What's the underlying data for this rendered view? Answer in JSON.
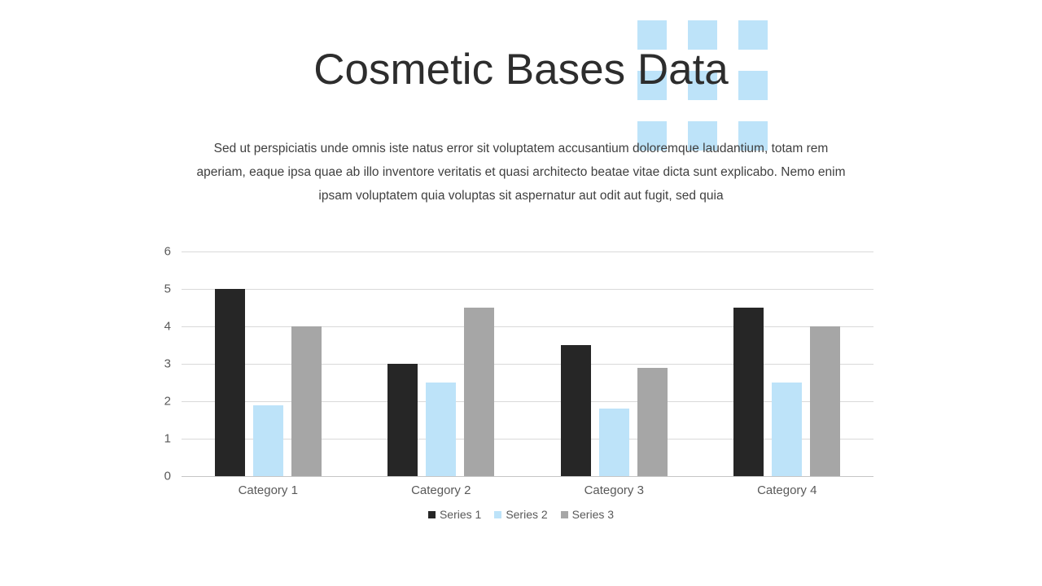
{
  "slide": {
    "title": "Cosmetic Bases Data",
    "body_lines": [
      "Sed ut perspiciatis unde omnis iste natus error sit voluptatem accusantium doloremque laudantium, totam rem",
      "aperiam, eaque ipsa quae ab illo inventore veritatis et quasi architecto beatae vitae dicta sunt explicabo. Nemo enim",
      "ipsam voluptatem quia voluptas sit aspernatur aut odit aut fugit, sed quia"
    ]
  },
  "decor": {
    "rows": 3,
    "cols": 3,
    "square_color": "#BDE3F9"
  },
  "chart_data": {
    "type": "bar",
    "title": "",
    "xlabel": "",
    "ylabel": "",
    "categories": [
      "Category 1",
      "Category 2",
      "Category 3",
      "Category 4"
    ],
    "series": [
      {
        "name": "Series 1",
        "color": "#262626",
        "values": [
          5.0,
          3.0,
          3.5,
          4.5
        ]
      },
      {
        "name": "Series 2",
        "color": "#BDE3F9",
        "values": [
          1.9,
          2.5,
          1.8,
          2.5
        ]
      },
      {
        "name": "Series 3",
        "color": "#A6A6A6",
        "values": [
          4.0,
          4.5,
          2.9,
          4.0
        ]
      }
    ],
    "ylim": [
      0,
      6
    ],
    "ytick_step": 1,
    "yticks": [
      0,
      1,
      2,
      3,
      4,
      5,
      6
    ],
    "grid": true,
    "legend_position": "bottom"
  },
  "colors": {
    "title_text": "#2d2d2d",
    "body_text": "#3f3f3f",
    "axis_text": "#595959",
    "gridline": "#d9d9d9",
    "background": "#ffffff"
  }
}
